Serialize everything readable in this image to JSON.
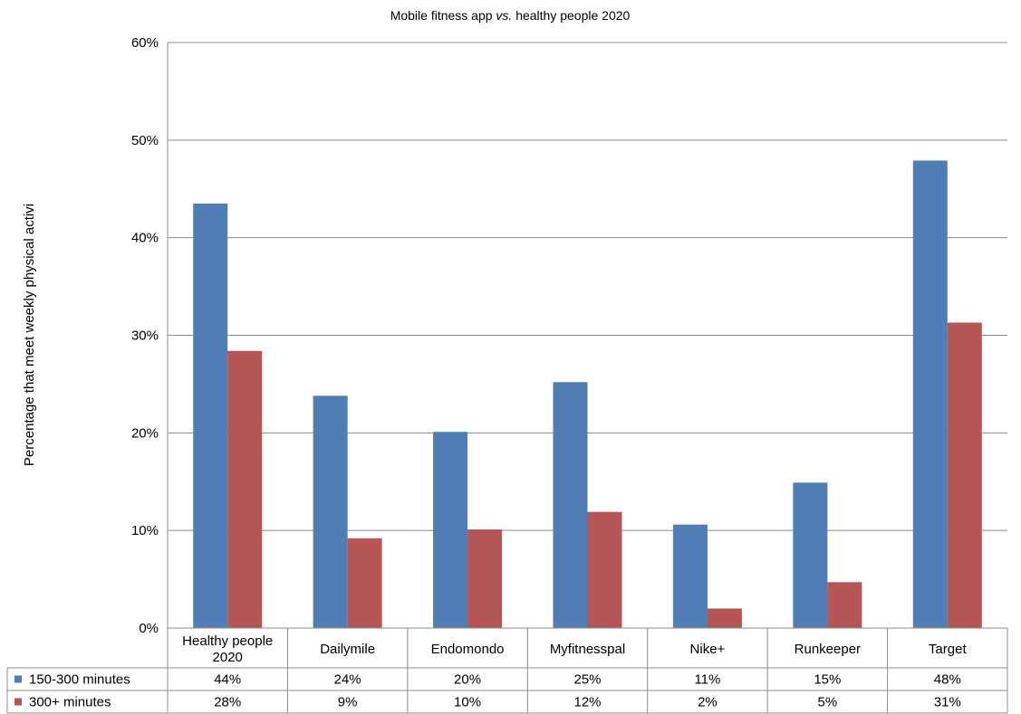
{
  "chart_data": {
    "type": "bar",
    "title": "Mobile fitness app ",
    "title_italic": "vs.",
    "title_tail": " healthy people 2020",
    "ylabel": "Percentage that meet weekly physical activi",
    "xlabel": "",
    "categories": [
      [
        "Healthy people",
        "2020"
      ],
      [
        "Dailymile"
      ],
      [
        "Endomondo"
      ],
      [
        "Myfitnesspal"
      ],
      [
        "Nike+"
      ],
      [
        "Runkeeper"
      ],
      [
        "Target"
      ]
    ],
    "series": [
      {
        "name": "150-300 minutes",
        "color": "#4f7db4",
        "values": [
          43.5,
          23.8,
          20.1,
          25.2,
          10.6,
          14.9,
          47.9
        ],
        "labels": [
          "44%",
          "24%",
          "20%",
          "25%",
          "11%",
          "15%",
          "48%"
        ]
      },
      {
        "name": "300+ minutes",
        "color": "#b55556",
        "values": [
          28.4,
          9.2,
          10.1,
          11.9,
          2.0,
          4.7,
          31.3
        ],
        "labels": [
          "28%",
          "9%",
          "10%",
          "12%",
          "2%",
          "5%",
          "31%"
        ]
      }
    ],
    "ylim": [
      0,
      60
    ],
    "yticks": [
      0,
      10,
      20,
      30,
      40,
      50,
      60
    ],
    "ytick_labels": [
      "0%",
      "10%",
      "20%",
      "30%",
      "40%",
      "50%",
      "60%"
    ],
    "grid": true,
    "legend": "data-table-rows"
  }
}
